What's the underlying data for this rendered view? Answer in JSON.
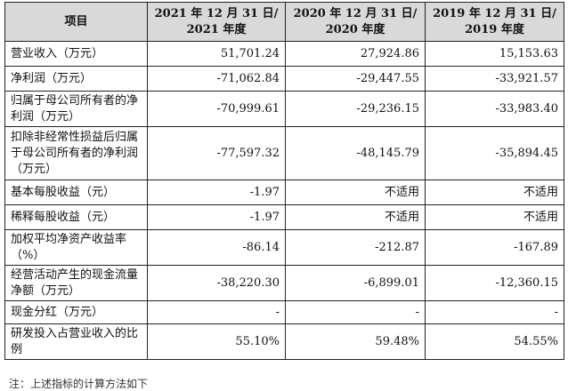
{
  "table": {
    "headers": [
      "项目",
      "2021 年 12 月 31 日/ 2021 年度",
      "2020 年 12 月 31 日/ 2020 年度",
      "2019 年 12 月 31 日/ 2019 年度"
    ],
    "rows": [
      {
        "label": "营业收入（万元）",
        "values": [
          "51,701.24",
          "27,924.86",
          "15,153.63"
        ]
      },
      {
        "label": "净利润（万元）",
        "values": [
          "-71,062.84",
          "-29,447.55",
          "-33,921.57"
        ]
      },
      {
        "label": "归属于母公司所有者的净利润（万元）",
        "values": [
          "-70,999.61",
          "-29,236.15",
          "-33,983.40"
        ]
      },
      {
        "label": "扣除非经常性损益后归属于母公司所有者的净利润（万元）",
        "values": [
          "-77,597.32",
          "-48,145.79",
          "-35,894.45"
        ]
      },
      {
        "label": "基本每股收益（元）",
        "values": [
          "-1.97",
          "不适用",
          "不适用"
        ]
      },
      {
        "label": "稀释每股收益（元）",
        "values": [
          "-1.97",
          "不适用",
          "不适用"
        ]
      },
      {
        "label": "加权平均净资产收益率（%）",
        "values": [
          "-86.14",
          "-212.87",
          "-167.89"
        ]
      },
      {
        "label": "经营活动产生的现金流量净额（万元）",
        "values": [
          "-38,220.30",
          "-6,899.01",
          "-12,360.15"
        ]
      },
      {
        "label": "现金分红（万元）",
        "values": [
          "-",
          "-",
          "-"
        ]
      },
      {
        "label": "研发投入占营业收入的比例",
        "values": [
          "55.10%",
          "59.48%",
          "54.55%"
        ]
      }
    ]
  },
  "footnote": "注：上述指标的计算方法如下"
}
